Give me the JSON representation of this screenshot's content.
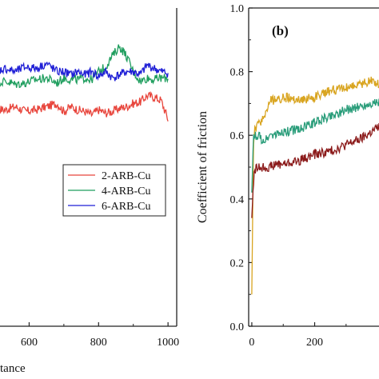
{
  "chart_data": [
    {
      "panel": "a",
      "type": "line",
      "title": "",
      "xlabel": "tance",
      "ylabel": "",
      "xlim": [
        470,
        1025
      ],
      "ylim": [
        0.0,
        1.0
      ],
      "x_ticks": [
        600,
        800,
        1000
      ],
      "legend_position": "right-middle",
      "series": [
        {
          "name": "2-ARB-Cu",
          "color": "#e8453c",
          "x": [
            470,
            500,
            530,
            560,
            590,
            620,
            650,
            680,
            700,
            720,
            740,
            760,
            780,
            800,
            820,
            840,
            860,
            880,
            900,
            920,
            940,
            960,
            980,
            1000
          ],
          "y": [
            0.68,
            0.685,
            0.68,
            0.69,
            0.675,
            0.68,
            0.69,
            0.7,
            0.675,
            0.69,
            0.68,
            0.675,
            0.665,
            0.68,
            0.67,
            0.675,
            0.685,
            0.69,
            0.7,
            0.705,
            0.725,
            0.72,
            0.71,
            0.65
          ]
        },
        {
          "name": "4-ARB-Cu",
          "color": "#1f9e5e",
          "x": [
            470,
            500,
            530,
            560,
            590,
            620,
            650,
            680,
            700,
            720,
            740,
            760,
            780,
            800,
            820,
            840,
            860,
            880,
            900,
            920,
            940,
            960,
            980,
            1000
          ],
          "y": [
            0.76,
            0.765,
            0.77,
            0.76,
            0.765,
            0.775,
            0.78,
            0.765,
            0.78,
            0.775,
            0.775,
            0.78,
            0.775,
            0.8,
            0.815,
            0.85,
            0.88,
            0.85,
            0.8,
            0.77,
            0.78,
            0.775,
            0.78,
            0.78
          ]
        },
        {
          "name": "6-ARB-Cu",
          "color": "#1f1fd6",
          "x": [
            470,
            500,
            530,
            560,
            590,
            620,
            650,
            680,
            700,
            720,
            740,
            760,
            780,
            800,
            820,
            840,
            860,
            880,
            900,
            920,
            940,
            960,
            980,
            1000
          ],
          "y": [
            0.78,
            0.8,
            0.81,
            0.8,
            0.815,
            0.81,
            0.825,
            0.8,
            0.8,
            0.79,
            0.8,
            0.79,
            0.8,
            0.785,
            0.8,
            0.78,
            0.79,
            0.8,
            0.8,
            0.79,
            0.82,
            0.81,
            0.8,
            0.795
          ]
        }
      ]
    },
    {
      "panel": "b",
      "type": "line",
      "title": "(b)",
      "xlabel": "",
      "ylabel": "Coefficient of friction",
      "xlim": [
        -10,
        420
      ],
      "ylim": [
        0.0,
        1.0
      ],
      "x_ticks": [
        0,
        200
      ],
      "y_ticks": [
        "0.0",
        "0.2",
        "0.4",
        "0.6",
        "0.8",
        "1.0"
      ],
      "series": [
        {
          "name": "",
          "color": "#d9a521",
          "x": [
            0,
            5,
            10,
            20,
            40,
            60,
            80,
            100,
            150,
            200,
            250,
            300,
            350,
            380,
            410
          ],
          "y": [
            0.1,
            0.56,
            0.62,
            0.63,
            0.66,
            0.71,
            0.71,
            0.72,
            0.71,
            0.72,
            0.74,
            0.75,
            0.76,
            0.77,
            0.76
          ]
        },
        {
          "name": "",
          "color": "#2a9d7a",
          "x": [
            0,
            5,
            10,
            20,
            40,
            60,
            80,
            100,
            150,
            200,
            250,
            300,
            350,
            380,
            410
          ],
          "y": [
            0.42,
            0.59,
            0.6,
            0.6,
            0.58,
            0.6,
            0.6,
            0.61,
            0.62,
            0.64,
            0.66,
            0.68,
            0.69,
            0.7,
            0.7
          ]
        },
        {
          "name": "",
          "color": "#8b1a1a",
          "x": [
            0,
            5,
            10,
            20,
            40,
            60,
            80,
            100,
            150,
            200,
            250,
            300,
            350,
            380,
            410
          ],
          "y": [
            0.34,
            0.45,
            0.49,
            0.5,
            0.5,
            0.5,
            0.51,
            0.51,
            0.52,
            0.54,
            0.55,
            0.57,
            0.59,
            0.61,
            0.63
          ]
        }
      ]
    }
  ]
}
